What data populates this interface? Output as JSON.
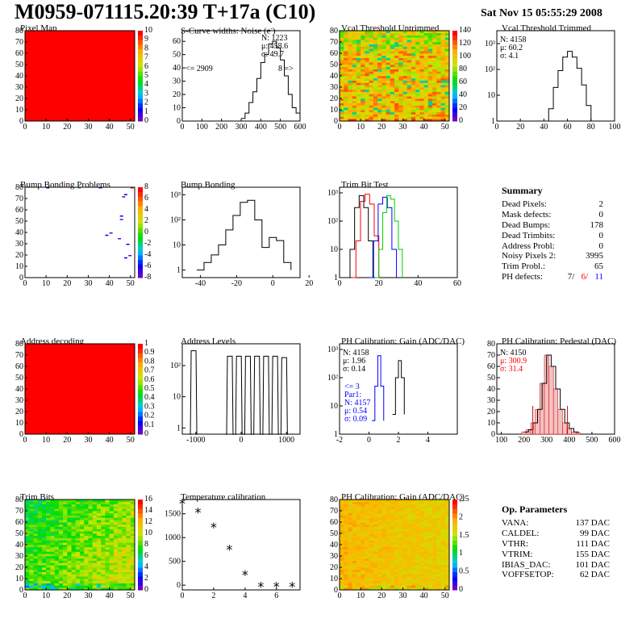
{
  "header": {
    "title": "M0959-071115.20:39 T+17a (C10)",
    "date": "Sat Nov 15 05:55:29 2008"
  },
  "colors": {
    "red": "#ff0000",
    "blue_par": "#0000ff",
    "green_trim": "#00cc00",
    "black": "#000000",
    "pedestal_fill": "#cc0000"
  },
  "panels": {
    "pixel_map": {
      "title": "Pixel Map",
      "xticks": [
        "0",
        "10",
        "20",
        "30",
        "40",
        "50"
      ],
      "yticks": [
        "0",
        "10",
        "20",
        "30",
        "40",
        "50",
        "60",
        "70",
        "80"
      ],
      "zticks": [
        "0",
        "1",
        "2",
        "3",
        "4",
        "5",
        "6",
        "7",
        "8",
        "9",
        "10"
      ],
      "fill": "uniform-red"
    },
    "scurve": {
      "title": "S-Curve widths: Noise (e",
      "title_sup": "-",
      "title_end": ")",
      "xticks": [
        "0",
        "100",
        "200",
        "300",
        "400",
        "500",
        "600"
      ],
      "yticks": [
        "0",
        "10",
        "20",
        "30",
        "40",
        "50",
        "60"
      ],
      "stats": [
        "N: 1223",
        "μ: 458.6",
        "σ: 49.7"
      ],
      "underflow": "<= 2909",
      "overflow": "8 =>"
    },
    "vcal_untrimmed": {
      "title": "Vcal Threshold Untrimmed",
      "xticks": [
        "0",
        "10",
        "20",
        "30",
        "40",
        "50"
      ],
      "yticks": [
        "0",
        "10",
        "20",
        "30",
        "40",
        "50",
        "60",
        "70",
        "80"
      ],
      "zticks": [
        "0",
        "20",
        "40",
        "60",
        "80",
        "100",
        "120",
        "140"
      ]
    },
    "vcal_trimmed": {
      "title": "Vcal Threshold Trimmed",
      "xticks": [
        "0",
        "20",
        "40",
        "60",
        "80",
        "100"
      ],
      "yticks": [
        "1",
        "10",
        "10²",
        "10³"
      ],
      "stats": [
        "N: 4158",
        "μ: 60.2",
        "σ:  4.1"
      ]
    },
    "bump_problems": {
      "title": "Bump Bonding Problems",
      "xticks": [
        "0",
        "10",
        "20",
        "30",
        "40",
        "50"
      ],
      "yticks": [
        "0",
        "10",
        "20",
        "30",
        "40",
        "50",
        "60",
        "70",
        "80"
      ],
      "zticks": [
        "-8",
        "-6",
        "-4",
        "-2",
        "0",
        "2",
        "4",
        "6",
        "8"
      ]
    },
    "bump_bonding": {
      "title": "Bump Bonding",
      "xticks": [
        "-40",
        "-20",
        "0",
        "20"
      ],
      "yticks": [
        "1",
        "10",
        "10²",
        "10³"
      ]
    },
    "trim_bit_test": {
      "title": "Trim Bit Test",
      "xticks": [
        "0",
        "20",
        "40",
        "60"
      ],
      "yticks": [
        "1",
        "10",
        "10²",
        "10³"
      ]
    },
    "address_decoding": {
      "title": "Address decoding",
      "xticks": [
        "0",
        "10",
        "20",
        "30",
        "40",
        "50"
      ],
      "yticks": [
        "0",
        "10",
        "20",
        "30",
        "40",
        "50",
        "60",
        "70",
        "80"
      ],
      "zticks": [
        "0",
        "0.1",
        "0.2",
        "0.3",
        "0.4",
        "0.5",
        "0.6",
        "0.7",
        "0.8",
        "0.9",
        "1"
      ]
    },
    "address_levels": {
      "title": "Address Levels",
      "xticks": [
        "-1000",
        "0",
        "1000"
      ],
      "yticks": [
        "1",
        "10",
        "10²"
      ]
    },
    "ph_gain": {
      "title": "PH Calibration: Gain (ADC/DAC)",
      "xticks": [
        "-2",
        "0",
        "2",
        "4"
      ],
      "yticks": [
        "1",
        "10",
        "10²",
        "10³"
      ],
      "stats": [
        "N: 4158",
        "μ: 1.96",
        "σ: 0.14"
      ],
      "par_lines": [
        "<= 3",
        "Par1:",
        "N: 4157",
        "μ: 0.54",
        "σ: 0.09"
      ]
    },
    "ph_pedestal": {
      "title": "PH Calibration: Pedestal (DAC)",
      "xticks": [
        "100",
        "200",
        "300",
        "400",
        "500",
        "600"
      ],
      "yticks": [
        "0",
        "10",
        "20",
        "30",
        "40",
        "50",
        "60",
        "70",
        "80"
      ],
      "stats": [
        "N: 4150"
      ],
      "stats_red": [
        "μ: 300.9",
        "σ: 31.4"
      ]
    },
    "trim_bits": {
      "title": "Trim Bits",
      "xticks": [
        "0",
        "10",
        "20",
        "30",
        "40",
        "50"
      ],
      "yticks": [
        "0",
        "10",
        "20",
        "30",
        "40",
        "50",
        "60",
        "70",
        "80"
      ],
      "zticks": [
        "0",
        "2",
        "4",
        "6",
        "8",
        "10",
        "12",
        "14",
        "16"
      ]
    },
    "temperature": {
      "title": "Temperature calibration",
      "xticks": [
        "0",
        "2",
        "4",
        "6"
      ],
      "yticks": [
        "0",
        "500",
        "1000",
        "1500"
      ]
    },
    "ph_gain_map": {
      "title": "PH Calibration: Gain (ADC/DAC)",
      "xticks": [
        "0",
        "10",
        "20",
        "30",
        "40",
        "50"
      ],
      "yticks": [
        "0",
        "10",
        "20",
        "30",
        "40",
        "50",
        "60",
        "70",
        "80"
      ],
      "zticks": [
        "0",
        "0.5",
        "1",
        "1.5",
        "2",
        "2.5"
      ]
    }
  },
  "chart_data": [
    {
      "type": "heatmap",
      "title": "Pixel Map",
      "xlim": [
        0,
        52
      ],
      "ylim": [
        0,
        80
      ],
      "zlim": [
        0,
        10
      ],
      "value_all": 10
    },
    {
      "type": "histogram",
      "title": "S-Curve widths: Noise (e-)",
      "xlim": [
        0,
        600
      ],
      "ylim": [
        0,
        68
      ],
      "x": [
        300,
        320,
        340,
        360,
        380,
        400,
        420,
        440,
        460,
        480,
        500,
        520,
        540,
        560,
        580,
        600
      ],
      "values": [
        2,
        6,
        14,
        22,
        32,
        44,
        50,
        58,
        60,
        55,
        46,
        34,
        20,
        10,
        6,
        3
      ]
    },
    {
      "type": "heatmap",
      "title": "Vcal Threshold Untrimmed",
      "xlim": [
        0,
        52
      ],
      "ylim": [
        0,
        80
      ],
      "zlim": [
        0,
        150
      ]
    },
    {
      "type": "histogram",
      "title": "Vcal Threshold Trimmed",
      "log_y": true,
      "xlim": [
        0,
        100
      ],
      "ylim": [
        1,
        2000
      ],
      "x": [
        40,
        44,
        48,
        52,
        56,
        60,
        64,
        68,
        72,
        76,
        80
      ],
      "values": [
        1,
        3,
        20,
        90,
        300,
        500,
        300,
        110,
        25,
        4,
        1
      ]
    },
    {
      "type": "heatmap",
      "title": "Bump Bonding Problems",
      "xlim": [
        0,
        52
      ],
      "ylim": [
        0,
        80
      ],
      "zlim": [
        -8,
        8
      ]
    },
    {
      "type": "histogram",
      "title": "Bump Bonding",
      "log_y": true,
      "xlim": [
        -50,
        15
      ],
      "ylim": [
        0.5,
        2000
      ],
      "x": [
        -42,
        -38,
        -34,
        -30,
        -26,
        -22,
        -18,
        -14,
        -10,
        -6,
        -2,
        2,
        6,
        10
      ],
      "values": [
        1,
        2,
        4,
        10,
        40,
        150,
        500,
        600,
        100,
        8,
        20,
        15,
        2,
        1
      ]
    },
    {
      "type": "histogram",
      "title": "Trim Bit Test",
      "log_y": true,
      "xlim": [
        0,
        60
      ],
      "series": [
        {
          "values": [
            1,
            10,
            300,
            800,
            300,
            20,
            1
          ]
        },
        {
          "values": [
            1,
            20,
            500,
            900,
            400,
            30,
            1
          ]
        },
        {
          "values": [
            1,
            20,
            400,
            700,
            300,
            10,
            1
          ]
        },
        {
          "values": [
            1,
            10,
            200,
            800,
            600,
            100,
            10,
            1
          ]
        }
      ]
    },
    {
      "type": "heatmap",
      "title": "Address decoding",
      "xlim": [
        0,
        52
      ],
      "ylim": [
        0,
        80
      ],
      "zlim": [
        0,
        1
      ],
      "value_all": 1
    },
    {
      "type": "histogram",
      "title": "Address Levels",
      "log_y": true,
      "xlim": [
        -1300,
        1300
      ],
      "peaks": [
        -1050,
        -250,
        -50,
        150,
        350,
        550,
        750,
        950
      ],
      "values": [
        300,
        200,
        200,
        200,
        200,
        200,
        200,
        180
      ]
    },
    {
      "type": "histogram",
      "title": "PH Calibration: Gain (ADC/DAC)",
      "log_y": true,
      "xlim": [
        -2,
        6
      ],
      "series": [
        {
          "x": [
            1.6,
            1.8,
            2.0,
            2.2,
            2.4
          ],
          "values": [
            5,
            100,
            400,
            100,
            5
          ]
        },
        {
          "x": [
            0.2,
            0.4,
            0.6,
            0.8,
            1.0
          ],
          "values": [
            3,
            50,
            600,
            50,
            3
          ]
        }
      ]
    },
    {
      "type": "histogram",
      "title": "PH Calibration: Pedestal (DAC)",
      "xlim": [
        80,
        600
      ],
      "ylim": [
        0,
        80
      ],
      "x": [
        200,
        220,
        240,
        260,
        280,
        300,
        320,
        340,
        360,
        380,
        400,
        420,
        440
      ],
      "values": [
        2,
        4,
        10,
        22,
        45,
        70,
        60,
        40,
        22,
        10,
        5,
        2,
        1
      ]
    },
    {
      "type": "heatmap",
      "title": "Trim Bits",
      "xlim": [
        0,
        52
      ],
      "ylim": [
        0,
        80
      ],
      "zlim": [
        0,
        16
      ]
    },
    {
      "type": "scatter",
      "title": "Temperature calibration",
      "xlim": [
        0,
        7.5
      ],
      "ylim": [
        -100,
        1800
      ],
      "x": [
        0,
        1,
        2,
        3,
        4,
        5,
        6,
        7
      ],
      "y": [
        1720,
        1540,
        1220,
        760,
        220,
        -20,
        -20,
        -20
      ]
    },
    {
      "type": "heatmap",
      "title": "PH Calibration: Gain (ADC/DAC)",
      "xlim": [
        0,
        52
      ],
      "ylim": [
        0,
        80
      ],
      "zlim": [
        0,
        2.6
      ]
    }
  ],
  "summary": {
    "title": "Summary",
    "rows": [
      {
        "label": "Dead Pixels:",
        "value": "2"
      },
      {
        "label": "Mask defects:",
        "value": "0"
      },
      {
        "label": "Dead Bumps:",
        "value": "178"
      },
      {
        "label": "Dead Trimbits:",
        "value": "0"
      },
      {
        "label": "Address Probl:",
        "value": "0"
      },
      {
        "label": "Noisy Pixels 2:",
        "value": "3995"
      },
      {
        "label": "Trim Probl.:",
        "value": "65"
      }
    ],
    "ph_label": "PH defects:",
    "ph_values": [
      "7/",
      "6/",
      "11"
    ]
  },
  "op_params": {
    "title": "Op. Parameters",
    "rows": [
      {
        "label": "VANA:",
        "value": "137 DAC"
      },
      {
        "label": "CALDEL:",
        "value": "99 DAC"
      },
      {
        "label": "VTHR:",
        "value": "111 DAC"
      },
      {
        "label": "VTRIM:",
        "value": "155 DAC"
      },
      {
        "label": "IBIAS_DAC:",
        "value": "101 DAC"
      },
      {
        "label": "VOFFSETOP:",
        "value": "62 DAC"
      }
    ]
  }
}
